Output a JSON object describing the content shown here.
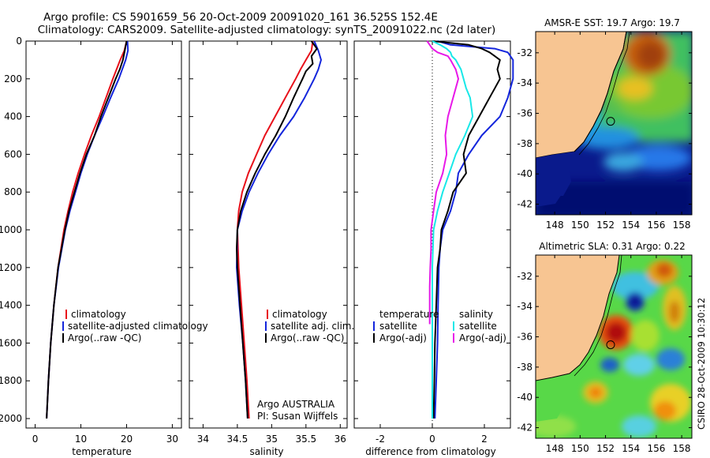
{
  "header": {
    "line1": "Argo profile: CS 5901659_56 20-Oct-2009 20091020_161 36.525S 152.4E",
    "line2": "Climatology: CARS2009. Satellite-adjusted climatology: synTS_20091022.nc (2d later)"
  },
  "side_label": "CSIRO 28-Oct-2009 10:30:12",
  "colors": {
    "red": "#e8101a",
    "blue": "#1426dc",
    "black": "#000000",
    "cyan": "#18e8e8",
    "magenta": "#e818e8",
    "land": "#f7c592"
  },
  "chart_data": [
    {
      "type": "line",
      "id": "temperature",
      "xlabel": "temperature",
      "ylabel": "",
      "xlim": [
        -2,
        32
      ],
      "ylim": [
        2050,
        0
      ],
      "y_reversed": true,
      "xticks": [
        0,
        10,
        20,
        30
      ],
      "yticks": [
        0,
        200,
        400,
        600,
        800,
        1000,
        1200,
        1400,
        1600,
        1800,
        2000
      ],
      "legend": {
        "position": "lower-right",
        "entries": [
          "climatology",
          "satellite-adjusted climatology",
          "Argo(..raw -QC)"
        ]
      },
      "series": [
        {
          "name": "climatology",
          "color": "red",
          "depth": [
            0,
            50,
            100,
            200,
            300,
            400,
            500,
            600,
            700,
            800,
            900,
            1000,
            1200,
            1400,
            1600,
            1800,
            2000
          ],
          "values": [
            20,
            19.5,
            18.6,
            17.0,
            15.5,
            14.0,
            12.3,
            10.8,
            9.4,
            8.2,
            7.2,
            6.3,
            5.0,
            4.1,
            3.4,
            2.9,
            2.5
          ]
        },
        {
          "name": "satellite-adjusted climatology",
          "color": "blue",
          "depth": [
            0,
            50,
            100,
            200,
            300,
            400,
            500,
            600,
            700,
            800,
            900,
            1000,
            1200,
            1400,
            1600,
            1800,
            2000
          ],
          "values": [
            20.2,
            20.3,
            19.8,
            18.3,
            16.5,
            14.8,
            13.0,
            11.4,
            10.0,
            8.8,
            7.6,
            6.6,
            5.1,
            4.1,
            3.4,
            2.9,
            2.5
          ]
        },
        {
          "name": "Argo(..raw -QC)",
          "color": "black",
          "depth": [
            0,
            50,
            100,
            150,
            200,
            300,
            400,
            500,
            600,
            700,
            800,
            900,
            1000,
            1200,
            1400,
            1600,
            1800,
            2000
          ],
          "values": [
            20.0,
            19.6,
            19.2,
            18.5,
            17.6,
            16.0,
            14.4,
            13.0,
            11.2,
            9.8,
            8.6,
            7.4,
            6.5,
            5.0,
            4.1,
            3.4,
            2.9,
            2.5
          ]
        }
      ]
    },
    {
      "type": "line",
      "id": "salinity",
      "xlabel": "salinity",
      "ylabel": "",
      "xlim": [
        33.8,
        36.1
      ],
      "ylim": [
        2050,
        0
      ],
      "y_reversed": true,
      "xticks": [
        34,
        34.5,
        35,
        35.5,
        36
      ],
      "legend": {
        "position": "lower-right",
        "entries": [
          "climatology",
          "satellite adj. clim.",
          "Argo(..raw -QC)"
        ]
      },
      "annotations": [
        "Argo AUSTRALIA",
        "PI: Susan Wijffels"
      ],
      "series": [
        {
          "name": "climatology",
          "color": "red",
          "depth": [
            0,
            50,
            100,
            150,
            200,
            300,
            400,
            500,
            600,
            700,
            800,
            900,
            1000,
            1200,
            1400,
            1600,
            1800,
            2000
          ],
          "values": [
            35.6,
            35.58,
            35.5,
            35.42,
            35.35,
            35.2,
            35.05,
            34.9,
            34.78,
            34.66,
            34.57,
            34.52,
            34.5,
            34.52,
            34.56,
            34.6,
            34.64,
            34.67
          ]
        },
        {
          "name": "satellite adj. clim.",
          "color": "blue",
          "depth": [
            0,
            50,
            100,
            150,
            200,
            300,
            400,
            500,
            600,
            700,
            800,
            900,
            1000,
            1200,
            1400,
            1600,
            1800,
            2000
          ],
          "values": [
            35.62,
            35.68,
            35.72,
            35.68,
            35.62,
            35.48,
            35.32,
            35.12,
            34.95,
            34.8,
            34.67,
            34.57,
            34.5,
            34.49,
            34.53,
            34.58,
            34.62,
            34.65
          ]
        },
        {
          "name": "Argo(..raw -QC)",
          "color": "black",
          "depth": [
            0,
            40,
            80,
            120,
            160,
            200,
            300,
            400,
            500,
            600,
            700,
            800,
            900,
            1000,
            1100,
            1200,
            1400,
            1600,
            1800,
            2000
          ],
          "values": [
            35.58,
            35.66,
            35.58,
            35.6,
            35.5,
            35.45,
            35.32,
            35.2,
            35.06,
            34.9,
            34.76,
            34.64,
            34.55,
            34.5,
            34.49,
            34.5,
            34.54,
            34.58,
            34.62,
            34.65
          ]
        }
      ]
    },
    {
      "type": "line",
      "id": "difference",
      "xlabel": "difference from climatology",
      "ylabel": "",
      "xlim": [
        -3,
        3
      ],
      "ylim": [
        2050,
        0
      ],
      "y_reversed": true,
      "xticks": [
        -2,
        0,
        2
      ],
      "zero_line": true,
      "legend": {
        "position": "lower-right",
        "columns": [
          {
            "heading": "temperature",
            "entries": [
              "satellite",
              "Argo(-adj)"
            ]
          },
          {
            "heading": "salinity",
            "entries": [
              "satellite",
              "Argo(-adj)"
            ]
          }
        ]
      },
      "series": [
        {
          "name": "temperature satellite",
          "color": "blue",
          "depth": [
            0,
            20,
            40,
            60,
            80,
            100,
            150,
            200,
            300,
            400,
            500,
            600,
            700,
            800,
            900,
            1000,
            1100,
            1200,
            1400,
            1600,
            1800,
            2000
          ],
          "values": [
            0.2,
            0.7,
            2.4,
            2.9,
            3.0,
            3.1,
            3.1,
            3.1,
            2.9,
            2.6,
            1.9,
            1.4,
            1.0,
            0.9,
            0.7,
            0.4,
            0.3,
            0.25,
            0.22,
            0.2,
            0.15,
            0.1
          ]
        },
        {
          "name": "temperature Argo(-adj)",
          "color": "black",
          "depth": [
            0,
            20,
            40,
            60,
            80,
            100,
            150,
            200,
            250,
            300,
            400,
            500,
            600,
            700,
            800,
            900,
            1000,
            1100,
            1200,
            1400,
            1600,
            1800,
            2000
          ],
          "values": [
            0.0,
            1.4,
            1.9,
            2.2,
            2.4,
            2.6,
            2.5,
            2.6,
            2.4,
            2.2,
            1.8,
            1.4,
            1.2,
            1.3,
            0.8,
            0.6,
            0.35,
            0.3,
            0.2,
            0.15,
            0.1,
            0.08,
            0.05
          ]
        },
        {
          "name": "salinity satellite",
          "color": "cyan",
          "depth": [
            0,
            20,
            40,
            60,
            80,
            100,
            150,
            200,
            250,
            300,
            400,
            500,
            600,
            700,
            800,
            900,
            1000,
            1200,
            1400,
            1600,
            1800,
            2000
          ],
          "values": [
            0.0,
            0.3,
            0.55,
            0.7,
            0.75,
            0.9,
            1.1,
            1.2,
            1.3,
            1.45,
            1.55,
            1.25,
            0.9,
            0.65,
            0.4,
            0.2,
            0.05,
            0.0,
            0.0,
            0.0,
            0.0,
            0.0
          ]
        },
        {
          "name": "salinity Argo(-adj)",
          "color": "magenta",
          "depth": [
            0,
            20,
            40,
            60,
            80,
            100,
            150,
            200,
            300,
            400,
            500,
            600,
            700,
            800,
            900,
            1000,
            1100,
            1200,
            1300,
            1400,
            1500
          ],
          "values": [
            -0.2,
            -0.1,
            0.0,
            0.2,
            0.6,
            0.7,
            0.9,
            1.0,
            0.8,
            0.6,
            0.5,
            0.55,
            0.4,
            0.15,
            0.05,
            -0.05,
            -0.05,
            -0.08,
            -0.1,
            -0.1,
            -0.1
          ]
        }
      ]
    },
    {
      "type": "heatmap",
      "id": "sst_map",
      "title": "AMSR-E SST: 19.7 Argo: 19.7",
      "xlim": [
        146.5,
        158.8
      ],
      "ylim": [
        -42.7,
        -30.6
      ],
      "xticks": [
        148,
        150,
        152,
        154,
        156,
        158
      ],
      "yticks": [
        -32,
        -34,
        -36,
        -38,
        -40,
        -42
      ],
      "argo_position": {
        "lon": 152.4,
        "lat": -36.525
      }
    },
    {
      "type": "heatmap",
      "id": "sla_map",
      "title": "Altimetric SLA: 0.31 Argo: 0.22",
      "xlim": [
        146.5,
        158.8
      ],
      "ylim": [
        -42.7,
        -30.6
      ],
      "xticks": [
        148,
        150,
        152,
        154,
        156,
        158
      ],
      "yticks": [
        -32,
        -34,
        -36,
        -38,
        -40,
        -42
      ],
      "argo_position": {
        "lon": 152.4,
        "lat": -36.525
      }
    }
  ]
}
